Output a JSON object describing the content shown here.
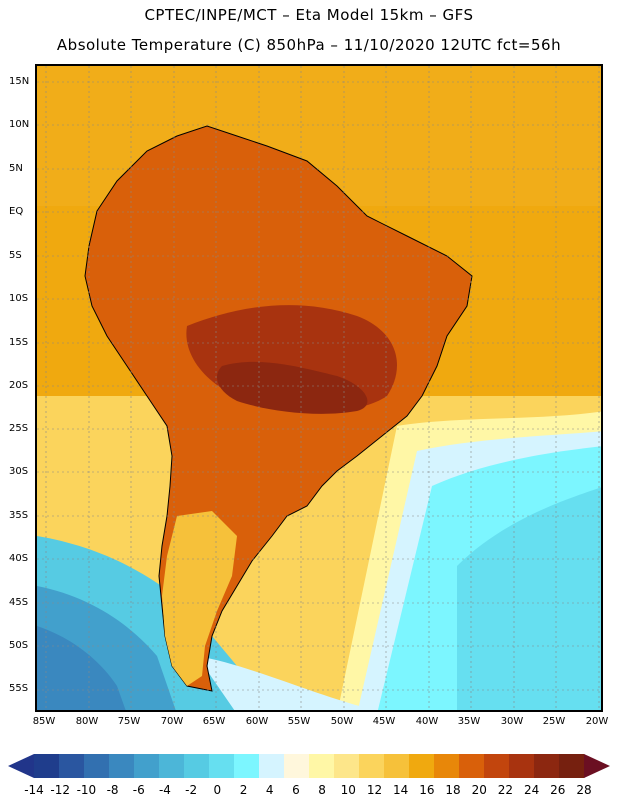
{
  "header": {
    "line1": "CPTEC/INPE/MCT –  Eta Model 15km – GFS",
    "line2": "Absolute Temperature (C) 850hPa – 11/10/2020 12UTC fct=56h"
  },
  "map": {
    "lat_labels": [
      "15N",
      "10N",
      "5N",
      "EQ",
      "5S",
      "10S",
      "15S",
      "20S",
      "25S",
      "30S",
      "35S",
      "40S",
      "45S",
      "50S",
      "55S"
    ],
    "lon_labels": [
      "85W",
      "80W",
      "75W",
      "70W",
      "65W",
      "60W",
      "55W",
      "50W",
      "45W",
      "40W",
      "35W",
      "30W",
      "25W",
      "20W"
    ]
  },
  "colorbar": {
    "tick_labels": [
      "-14",
      "-12",
      "-10",
      "-8",
      "-6",
      "-4",
      "-2",
      "0",
      "2",
      "4",
      "6",
      "8",
      "10",
      "12",
      "14",
      "16",
      "18",
      "20",
      "22",
      "24",
      "26",
      "28"
    ],
    "colors": [
      "#1f3d8c",
      "#2a56a0",
      "#3270b0",
      "#3a88bf",
      "#42a0cc",
      "#4cb6d8",
      "#56cbe3",
      "#66dff0",
      "#7cf6ff",
      "#d5f4ff",
      "#fff7dc",
      "#fff7a6",
      "#fde68a",
      "#fbd45c",
      "#f6c13a",
      "#f0a90f",
      "#e88709",
      "#d9600a",
      "#c2450d",
      "#a8330f",
      "#8c2710",
      "#76200f"
    ],
    "under_color": "#21358a",
    "over_color": "#6b0f22"
  }
}
